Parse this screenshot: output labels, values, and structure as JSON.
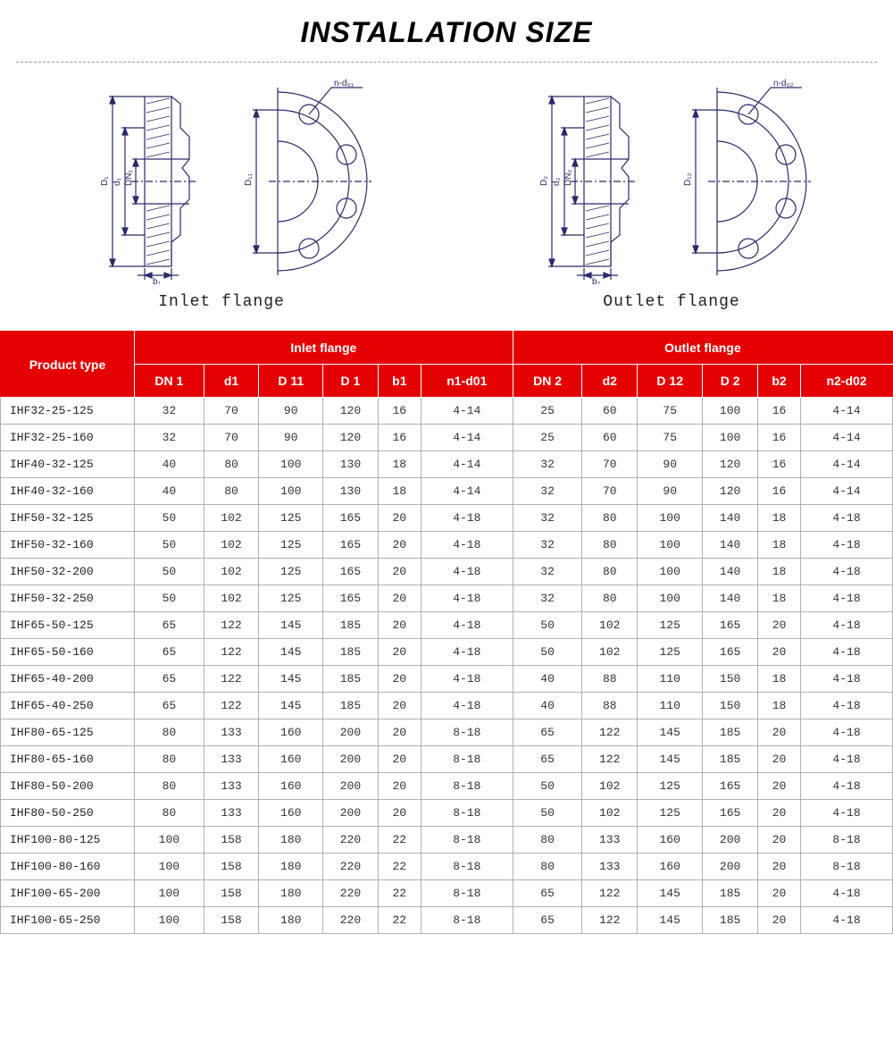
{
  "title": "INSTALLATION SIZE",
  "diagrams": {
    "inlet": {
      "caption": "Inlet flange",
      "side_labels": [
        "D₁",
        "d₁",
        "DN₁"
      ],
      "bottom_label": "b₁",
      "front_label_inner": "D₁₁",
      "hole_label": "n-d₀₁"
    },
    "outlet": {
      "caption": "Outlet flange",
      "side_labels": [
        "D₂",
        "d₂",
        "DN₂"
      ],
      "bottom_label": "b₂",
      "front_label_inner": "D₁₂",
      "hole_label": "n-d₀₂"
    }
  },
  "table": {
    "header": {
      "product_type": "Product type",
      "inlet_flange": "Inlet flange",
      "outlet_flange": "Outlet flange",
      "inlet_cols": [
        "DN 1",
        "d1",
        "D 11",
        "D 1",
        "b1",
        "n1-d01"
      ],
      "outlet_cols": [
        "DN 2",
        "d2",
        "D 12",
        "D 2",
        "b2",
        "n2-d02"
      ]
    },
    "rows": [
      [
        "IHF32-25-125",
        "32",
        "70",
        "90",
        "120",
        "16",
        "4-14",
        "25",
        "60",
        "75",
        "100",
        "16",
        "4-14"
      ],
      [
        "IHF32-25-160",
        "32",
        "70",
        "90",
        "120",
        "16",
        "4-14",
        "25",
        "60",
        "75",
        "100",
        "16",
        "4-14"
      ],
      [
        "IHF40-32-125",
        "40",
        "80",
        "100",
        "130",
        "18",
        "4-14",
        "32",
        "70",
        "90",
        "120",
        "16",
        "4-14"
      ],
      [
        "IHF40-32-160",
        "40",
        "80",
        "100",
        "130",
        "18",
        "4-14",
        "32",
        "70",
        "90",
        "120",
        "16",
        "4-14"
      ],
      [
        "IHF50-32-125",
        "50",
        "102",
        "125",
        "165",
        "20",
        "4-18",
        "32",
        "80",
        "100",
        "140",
        "18",
        "4-18"
      ],
      [
        "IHF50-32-160",
        "50",
        "102",
        "125",
        "165",
        "20",
        "4-18",
        "32",
        "80",
        "100",
        "140",
        "18",
        "4-18"
      ],
      [
        "IHF50-32-200",
        "50",
        "102",
        "125",
        "165",
        "20",
        "4-18",
        "32",
        "80",
        "100",
        "140",
        "18",
        "4-18"
      ],
      [
        "IHF50-32-250",
        "50",
        "102",
        "125",
        "165",
        "20",
        "4-18",
        "32",
        "80",
        "100",
        "140",
        "18",
        "4-18"
      ],
      [
        "IHF65-50-125",
        "65",
        "122",
        "145",
        "185",
        "20",
        "4-18",
        "50",
        "102",
        "125",
        "165",
        "20",
        "4-18"
      ],
      [
        "IHF65-50-160",
        "65",
        "122",
        "145",
        "185",
        "20",
        "4-18",
        "50",
        "102",
        "125",
        "165",
        "20",
        "4-18"
      ],
      [
        "IHF65-40-200",
        "65",
        "122",
        "145",
        "185",
        "20",
        "4-18",
        "40",
        "88",
        "110",
        "150",
        "18",
        "4-18"
      ],
      [
        "IHF65-40-250",
        "65",
        "122",
        "145",
        "185",
        "20",
        "4-18",
        "40",
        "88",
        "110",
        "150",
        "18",
        "4-18"
      ],
      [
        "IHF80-65-125",
        "80",
        "133",
        "160",
        "200",
        "20",
        "8-18",
        "65",
        "122",
        "145",
        "185",
        "20",
        "4-18"
      ],
      [
        "IHF80-65-160",
        "80",
        "133",
        "160",
        "200",
        "20",
        "8-18",
        "65",
        "122",
        "145",
        "185",
        "20",
        "4-18"
      ],
      [
        "IHF80-50-200",
        "80",
        "133",
        "160",
        "200",
        "20",
        "8-18",
        "50",
        "102",
        "125",
        "165",
        "20",
        "4-18"
      ],
      [
        "IHF80-50-250",
        "80",
        "133",
        "160",
        "200",
        "20",
        "8-18",
        "50",
        "102",
        "125",
        "165",
        "20",
        "4-18"
      ],
      [
        "IHF100-80-125",
        "100",
        "158",
        "180",
        "220",
        "22",
        "8-18",
        "80",
        "133",
        "160",
        "200",
        "20",
        "8-18"
      ],
      [
        "IHF100-80-160",
        "100",
        "158",
        "180",
        "220",
        "22",
        "8-18",
        "80",
        "133",
        "160",
        "200",
        "20",
        "8-18"
      ],
      [
        "IHF100-65-200",
        "100",
        "158",
        "180",
        "220",
        "22",
        "8-18",
        "65",
        "122",
        "145",
        "185",
        "20",
        "4-18"
      ],
      [
        "IHF100-65-250",
        "100",
        "158",
        "180",
        "220",
        "22",
        "8-18",
        "65",
        "122",
        "145",
        "185",
        "20",
        "4-18"
      ]
    ]
  },
  "style": {
    "header_bg": "#e40000",
    "header_fg": "#ffffff",
    "border_color": "#b0b0b0",
    "cell_font": "Courier New",
    "title_fontsize": 32
  }
}
